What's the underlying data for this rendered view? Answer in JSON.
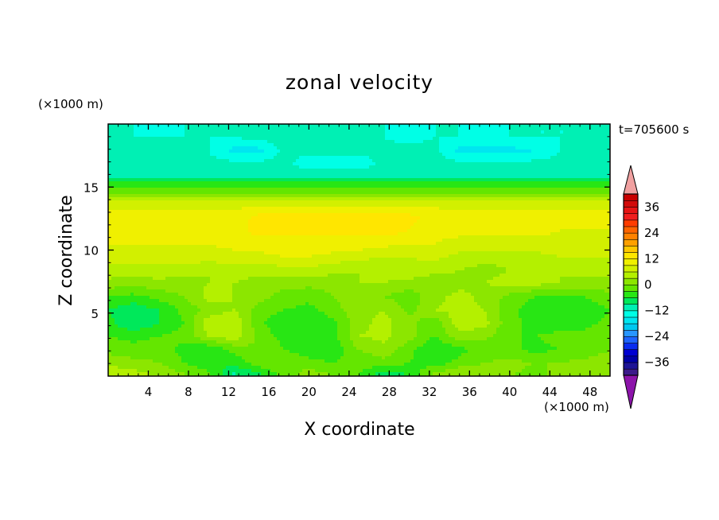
{
  "chart_data": {
    "type": "heatmap",
    "title": "zonal velocity",
    "xlabel": "X coordinate",
    "ylabel": "Z coordinate",
    "x_unit_label": "(×1000 m)",
    "y_unit_label": "(×1000 m)",
    "time_label": "t=705600 s",
    "xlim": [
      0,
      50
    ],
    "ylim": [
      0,
      20
    ],
    "x_ticks": [
      "4",
      "8",
      "12",
      "16",
      "20",
      "24",
      "28",
      "32",
      "36",
      "40",
      "44",
      "48"
    ],
    "y_ticks": [
      "5",
      "10",
      "15"
    ],
    "colorbar": {
      "levels": [
        -42,
        -39,
        -36,
        -33,
        -30,
        -27,
        -24,
        -21,
        -18,
        -15,
        -12,
        -9,
        -6,
        -3,
        0,
        3,
        6,
        9,
        12,
        15,
        18,
        21,
        24,
        27,
        30,
        33,
        36,
        39,
        42
      ],
      "colors": [
        "#3c1a8a",
        "#1e1496",
        "#0000a8",
        "#0000d2",
        "#0a2cf0",
        "#1e64ff",
        "#2896ff",
        "#00c8f0",
        "#00e6f0",
        "#00ffe6",
        "#00f0b4",
        "#00e85a",
        "#28e614",
        "#64e600",
        "#8ce600",
        "#b4f000",
        "#d2f000",
        "#f0f000",
        "#ffe600",
        "#ffc800",
        "#ffa000",
        "#ff8200",
        "#ff6400",
        "#ff3c00",
        "#f01e1e",
        "#e61414",
        "#d20a0a",
        "#c80000"
      ],
      "under_color": "#8c14aa",
      "over_color": "#f0a0a0",
      "tick_labels": [
        "36",
        "24",
        "12",
        "0",
        "−12",
        "−24",
        "−36"
      ]
    },
    "z_grid_rows_top_to_bottom": [
      [
        -12,
        -12,
        -13,
        -12,
        -12,
        -12,
        -12,
        -12,
        -12,
        -12,
        -12,
        -12,
        -12,
        -12,
        -12,
        -12,
        -12,
        -12,
        -12,
        -12,
        -12
      ],
      [
        -12,
        -12,
        -12,
        -12,
        -12,
        -12,
        -11,
        -11,
        -11,
        -11,
        -11,
        -12,
        -13,
        -12,
        -12,
        -13,
        -12,
        -12,
        -12,
        -12,
        -11
      ],
      [
        -11,
        -11,
        -11,
        -11,
        -12,
        -16,
        -16,
        -11,
        -11,
        -11,
        -11,
        -11,
        -11,
        -11,
        -16,
        -16,
        -16,
        -15,
        -12,
        -11,
        -11
      ],
      [
        -11,
        -11,
        -11,
        -11,
        -11,
        -11,
        -11,
        -11,
        -14,
        -14,
        -14,
        -11,
        -11,
        -11,
        -11,
        -11,
        -11,
        -11,
        -11,
        -11,
        -11
      ],
      [
        -9,
        -9,
        -9,
        -9,
        -9,
        -9,
        -9,
        -9,
        -9,
        -9,
        -9,
        -9,
        -9,
        -9,
        -9,
        -9,
        -9,
        -9,
        -9,
        -9,
        -9
      ],
      [
        -2,
        -2,
        -2,
        -2,
        -2,
        -2,
        -2,
        -2,
        -2,
        -2,
        -2,
        -2,
        -2,
        -2,
        -2,
        -2,
        -2,
        -2,
        -2,
        -2,
        -2
      ],
      [
        8,
        8,
        8,
        8,
        8,
        8,
        8,
        8,
        8,
        8,
        8,
        8,
        8,
        8,
        8,
        8,
        8,
        8,
        8,
        8,
        8
      ],
      [
        10,
        10,
        10,
        10,
        10,
        10,
        13,
        13,
        13,
        13,
        13,
        13,
        13,
        11,
        10,
        10,
        10,
        10,
        10,
        10,
        10
      ],
      [
        10,
        10,
        10,
        10,
        10,
        11,
        13,
        13,
        13,
        13,
        13,
        14,
        12,
        10,
        10,
        10,
        10,
        10,
        9,
        9,
        9
      ],
      [
        9,
        9,
        9,
        9,
        9,
        10,
        11,
        11,
        11,
        11,
        11,
        10,
        9,
        9,
        8,
        8,
        8,
        8,
        8,
        8,
        8
      ],
      [
        8,
        8,
        8,
        8,
        8,
        8,
        8,
        9,
        9,
        8,
        7,
        6,
        6,
        7,
        5,
        4,
        4,
        5,
        6,
        6,
        6
      ],
      [
        5,
        5,
        5,
        4,
        3,
        4,
        4,
        5,
        5,
        4,
        3,
        4,
        5,
        4,
        3,
        2,
        3,
        4,
        3,
        4,
        4
      ],
      [
        2,
        1,
        2,
        2,
        3,
        3,
        2,
        1,
        1,
        1,
        3,
        3,
        2,
        1,
        2,
        3,
        4,
        4,
        3,
        2,
        2
      ],
      [
        -3,
        -4,
        -2,
        0,
        4,
        3,
        1,
        -1,
        -2,
        0,
        1,
        0,
        -2,
        2,
        4,
        2,
        -1,
        -3,
        -4,
        -3,
        -1
      ],
      [
        -6,
        -8,
        -6,
        -2,
        1,
        3,
        -1,
        -3,
        -4,
        -1,
        2,
        3,
        -1,
        3,
        4,
        3,
        -2,
        -5,
        -6,
        -5,
        -3
      ],
      [
        -5,
        -9,
        -6,
        -3,
        5,
        6,
        -2,
        -6,
        -6,
        -4,
        2,
        4,
        1,
        -2,
        5,
        4,
        -2,
        -4,
        -5,
        -4,
        -2
      ],
      [
        -3,
        -4,
        -3,
        -2,
        3,
        5,
        -1,
        -4,
        -6,
        -4,
        3,
        4,
        1,
        -3,
        2,
        1,
        -3,
        -3,
        -2,
        -2,
        -1
      ],
      [
        -1,
        -2,
        -1,
        -4,
        -6,
        -2,
        0,
        -3,
        -5,
        -5,
        0,
        2,
        -2,
        -6,
        -4,
        -2,
        -2,
        -4,
        -3,
        -2,
        0
      ],
      [
        2,
        1,
        0,
        -3,
        -5,
        -5,
        -1,
        0,
        -2,
        -3,
        -2,
        -1,
        -3,
        -5,
        -2,
        0,
        1,
        0,
        0,
        1,
        2
      ],
      [
        6,
        5,
        3,
        1,
        -2,
        -10,
        -8,
        -2,
        2,
        0,
        -3,
        -9,
        -6,
        2,
        4,
        2,
        0,
        -1,
        1,
        2,
        3
      ]
    ]
  }
}
